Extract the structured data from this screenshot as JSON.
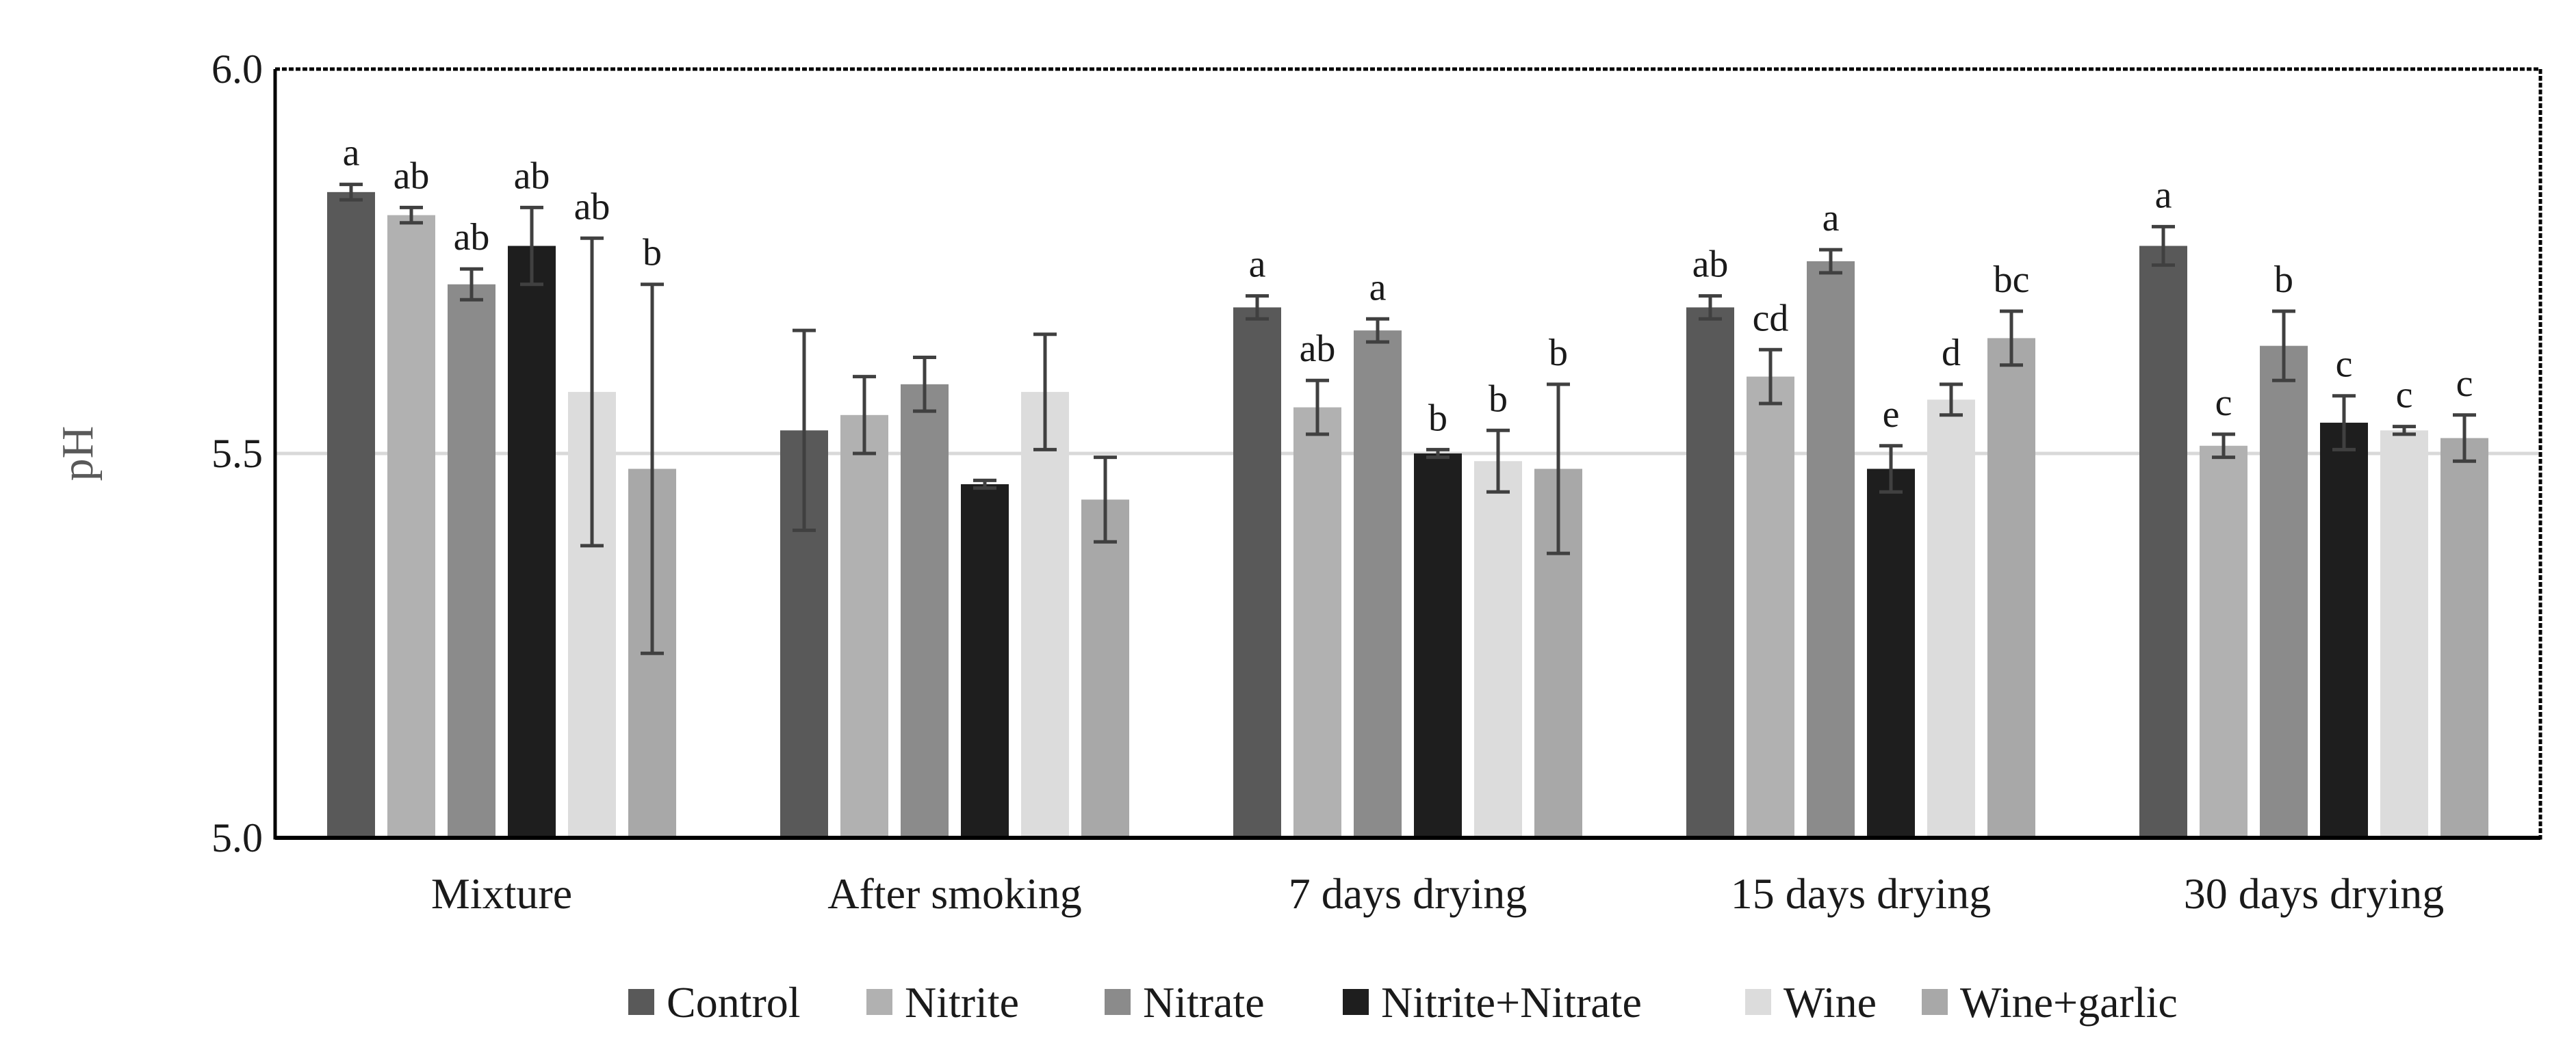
{
  "chart_data": {
    "type": "bar",
    "title": "",
    "xlabel": "",
    "ylabel": "pH",
    "ylim": [
      5.0,
      6.0
    ],
    "yticks": [
      "5.0",
      "5.5",
      "6.0"
    ],
    "reference_line": 5.5,
    "legend_position": "bottom",
    "categories": [
      "Mixture",
      "After smoking",
      "7 days drying",
      "15 days drying",
      "30 days drying"
    ],
    "series": [
      {
        "name": "Control",
        "color": "#595959",
        "values": [
          5.84,
          5.53,
          5.69,
          5.69,
          5.77
        ],
        "errors": [
          0.01,
          0.13,
          0.015,
          0.015,
          0.025
        ],
        "labels": [
          "a",
          "",
          "a",
          "ab",
          "a"
        ]
      },
      {
        "name": "Nitrite",
        "color": "#b1b1b1",
        "values": [
          5.81,
          5.55,
          5.56,
          5.6,
          5.51
        ],
        "errors": [
          0.01,
          0.05,
          0.035,
          0.035,
          0.015
        ],
        "labels": [
          "ab",
          "",
          "ab",
          "cd",
          "c"
        ]
      },
      {
        "name": "Nitrate",
        "color": "#8b8b8b",
        "values": [
          5.72,
          5.59,
          5.66,
          5.75,
          5.64
        ],
        "errors": [
          0.02,
          0.035,
          0.015,
          0.015,
          0.045
        ],
        "labels": [
          "ab",
          "",
          "a",
          "a",
          "b"
        ]
      },
      {
        "name": "Nitrite+Nitrate",
        "color": "#1e1e1e",
        "values": [
          5.77,
          5.46,
          5.5,
          5.48,
          5.54
        ],
        "errors": [
          0.05,
          0.005,
          0.005,
          0.03,
          0.035
        ],
        "labels": [
          "ab",
          "",
          "b",
          "e",
          "c"
        ]
      },
      {
        "name": "Wine",
        "color": "#dcdcdc",
        "values": [
          5.58,
          5.58,
          5.49,
          5.57,
          5.53
        ],
        "errors": [
          0.2,
          0.075,
          0.04,
          0.02,
          0.005
        ],
        "labels": [
          "ab",
          "",
          "b",
          "d",
          "c"
        ]
      },
      {
        "name": "Wine+garlic",
        "color": "#a8a8a8",
        "values": [
          5.48,
          5.44,
          5.48,
          5.65,
          5.52
        ],
        "errors": [
          0.24,
          0.055,
          0.11,
          0.035,
          0.03
        ],
        "labels": [
          "b",
          "",
          "b",
          "bc",
          "c"
        ]
      }
    ]
  }
}
